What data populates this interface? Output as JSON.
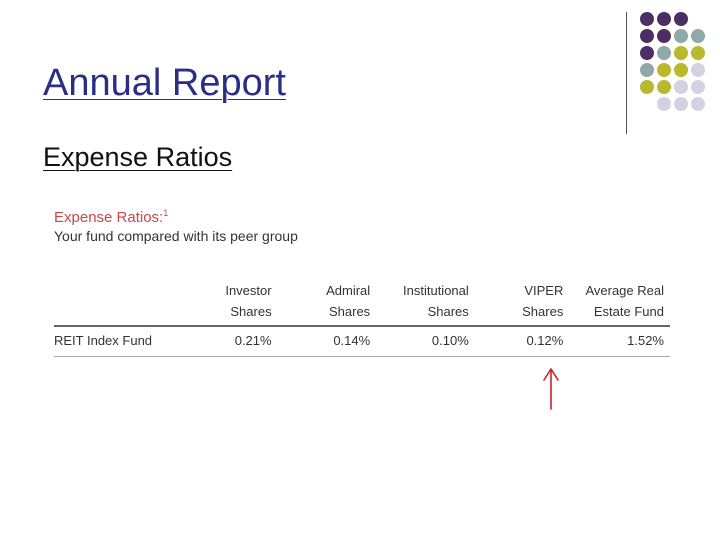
{
  "slide": {
    "title": "Annual Report",
    "subtitle": "Expense Ratios"
  },
  "decoration": {
    "dot_colors": {
      "purple": "#4b2f63",
      "teal": "#8fa8a8",
      "olive": "#b8b92c",
      "lavender": "#d3d2e2"
    }
  },
  "report": {
    "heading": "Expense Ratios:",
    "footnote": "1",
    "subheading": "Your fund compared with its peer group",
    "columns": [
      {
        "line1": "",
        "line2": ""
      },
      {
        "line1": "Investor",
        "line2": "Shares"
      },
      {
        "line1": "Admiral",
        "line2": "Shares"
      },
      {
        "line1": "Institutional",
        "line2": "Shares"
      },
      {
        "line1": "VIPER",
        "line2": "Shares"
      },
      {
        "line1": "Average Real",
        "line2": "Estate Fund"
      }
    ],
    "rows": [
      {
        "fund": "REIT Index Fund",
        "values": [
          "0.21%",
          "0.14%",
          "0.10%",
          "0.12%",
          "1.52%"
        ]
      }
    ],
    "annotation": {
      "icon": "arrow-up-icon",
      "color": "#c8242a",
      "points_to": "VIPER Shares"
    }
  }
}
